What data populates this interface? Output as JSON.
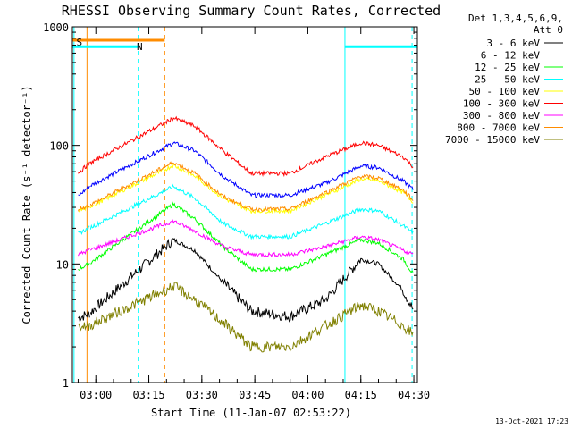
{
  "chart_data": {
    "type": "line",
    "title": "RHESSI Observing Summary Count Rates, Corrected",
    "xlabel": "Start Time (11-Jan-07 02:53:22)",
    "ylabel": "Corrected Count Rate (s⁻¹ detector⁻¹)",
    "yscale": "log",
    "ylim": [
      1,
      1000
    ],
    "xlim": [
      "02:53:22",
      "04:31:00"
    ],
    "x_ticks": [
      "03:00",
      "03:15",
      "03:30",
      "03:45",
      "04:00",
      "04:15",
      "04:30"
    ],
    "y_ticks": [
      "1",
      "10",
      "100",
      "1000"
    ],
    "legend_header": [
      "Det 1,3,4,5,6,9,",
      "Att 0"
    ],
    "legend_position": "right",
    "series": [
      {
        "name": "3 - 6 keV",
        "color": "#000000",
        "points": [
          [
            "02:55",
            3.5
          ],
          [
            "02:58",
            3.8
          ],
          [
            "03:22",
            16
          ],
          [
            "03:28",
            13
          ],
          [
            "03:36",
            7
          ],
          [
            "03:44",
            4
          ],
          [
            "03:55",
            3.6
          ],
          [
            "04:05",
            5
          ],
          [
            "04:15",
            11
          ],
          [
            "04:20",
            10
          ],
          [
            "04:27",
            6
          ],
          [
            "04:30",
            4
          ]
        ]
      },
      {
        "name": "6 - 12 keV",
        "color": "#0000ff",
        "points": [
          [
            "02:55",
            37
          ],
          [
            "02:58",
            45
          ],
          [
            "03:22",
            105
          ],
          [
            "03:28",
            90
          ],
          [
            "03:36",
            55
          ],
          [
            "03:44",
            38
          ],
          [
            "03:55",
            38
          ],
          [
            "04:05",
            48
          ],
          [
            "04:15",
            67
          ],
          [
            "04:20",
            65
          ],
          [
            "04:27",
            50
          ],
          [
            "04:30",
            42
          ]
        ]
      },
      {
        "name": "12 - 25 keV",
        "color": "#00ff00",
        "points": [
          [
            "02:55",
            9
          ],
          [
            "02:58",
            10
          ],
          [
            "03:22",
            32
          ],
          [
            "03:28",
            24
          ],
          [
            "03:36",
            14
          ],
          [
            "03:44",
            9
          ],
          [
            "03:55",
            9
          ],
          [
            "04:05",
            12
          ],
          [
            "04:15",
            16
          ],
          [
            "04:20",
            15
          ],
          [
            "04:27",
            11
          ],
          [
            "04:30",
            8
          ]
        ]
      },
      {
        "name": "25 - 50 keV",
        "color": "#00ffff",
        "points": [
          [
            "02:55",
            18
          ],
          [
            "02:58",
            20
          ],
          [
            "03:22",
            45
          ],
          [
            "03:28",
            36
          ],
          [
            "03:36",
            22
          ],
          [
            "03:44",
            17
          ],
          [
            "03:55",
            17
          ],
          [
            "04:05",
            22
          ],
          [
            "04:15",
            29
          ],
          [
            "04:20",
            28
          ],
          [
            "04:27",
            21
          ],
          [
            "04:30",
            18
          ]
        ]
      },
      {
        "name": "50 - 100 keV",
        "color": "#ffff00",
        "points": [
          [
            "02:55",
            28
          ],
          [
            "02:58",
            30
          ],
          [
            "03:22",
            68
          ],
          [
            "03:28",
            55
          ],
          [
            "03:36",
            36
          ],
          [
            "03:44",
            28
          ],
          [
            "03:55",
            28
          ],
          [
            "04:05",
            38
          ],
          [
            "04:15",
            52
          ],
          [
            "04:20",
            50
          ],
          [
            "04:27",
            40
          ],
          [
            "04:30",
            33
          ]
        ]
      },
      {
        "name": "100 - 300 keV",
        "color": "#ff0000",
        "points": [
          [
            "02:55",
            58
          ],
          [
            "02:58",
            70
          ],
          [
            "03:22",
            170
          ],
          [
            "03:28",
            145
          ],
          [
            "03:36",
            90
          ],
          [
            "03:44",
            58
          ],
          [
            "03:55",
            58
          ],
          [
            "04:05",
            80
          ],
          [
            "04:15",
            105
          ],
          [
            "04:20",
            100
          ],
          [
            "04:27",
            80
          ],
          [
            "04:30",
            65
          ]
        ]
      },
      {
        "name": "300 - 800 keV",
        "color": "#ff00ff",
        "points": [
          [
            "02:55",
            12
          ],
          [
            "02:58",
            13
          ],
          [
            "03:22",
            23
          ],
          [
            "03:28",
            19
          ],
          [
            "03:36",
            14
          ],
          [
            "03:44",
            12
          ],
          [
            "03:55",
            12
          ],
          [
            "04:05",
            14
          ],
          [
            "04:15",
            17
          ],
          [
            "04:20",
            16
          ],
          [
            "04:27",
            13
          ],
          [
            "04:30",
            12
          ]
        ]
      },
      {
        "name": "800 - 7000 keV",
        "color": "#ff8c00",
        "points": [
          [
            "02:55",
            29
          ],
          [
            "02:58",
            31
          ],
          [
            "03:22",
            72
          ],
          [
            "03:28",
            58
          ],
          [
            "03:36",
            37
          ],
          [
            "03:44",
            29
          ],
          [
            "03:55",
            29
          ],
          [
            "04:05",
            40
          ],
          [
            "04:15",
            55
          ],
          [
            "04:20",
            53
          ],
          [
            "04:27",
            42
          ],
          [
            "04:30",
            34
          ]
        ]
      },
      {
        "name": "7000 - 15000 keV",
        "color": "#808000",
        "points": [
          [
            "02:55",
            3
          ],
          [
            "02:58",
            3
          ],
          [
            "03:22",
            6.5
          ],
          [
            "03:28",
            5
          ],
          [
            "03:36",
            3.2
          ],
          [
            "03:44",
            2
          ],
          [
            "03:55",
            2
          ],
          [
            "04:05",
            3
          ],
          [
            "04:15",
            4.5
          ],
          [
            "04:20",
            4
          ],
          [
            "04:27",
            3
          ],
          [
            "04:30",
            2.5
          ]
        ]
      }
    ],
    "vertical_markers": [
      {
        "time": "02:57:30",
        "color": "#ff8c00",
        "style": "solid"
      },
      {
        "time": "03:19:30",
        "color": "#ff8c00",
        "style": "dashed"
      },
      {
        "time": "03:12:00",
        "color": "#00ffff",
        "style": "dashed"
      },
      {
        "time": "04:10:30",
        "color": "#00ffff",
        "style": "solid"
      },
      {
        "time": "04:29:30",
        "color": "#00ffff",
        "style": "dashed"
      },
      {
        "time": "02:53:50",
        "color": "#00ffff",
        "style": "solid"
      }
    ],
    "annotation_bars": [
      {
        "label": "S",
        "color": "#ff8c00",
        "start": "02:53:30",
        "end": "03:19:30",
        "y": 770
      },
      {
        "label": "N",
        "color": "#00ffff",
        "start": "02:53:22",
        "end": "03:12:00",
        "y": 680
      },
      {
        "label": "",
        "color": "#00ffff",
        "start": "04:10:30",
        "end": "04:31:00",
        "y": 680
      }
    ],
    "footer_date": "13-Oct-2021 17:23"
  }
}
